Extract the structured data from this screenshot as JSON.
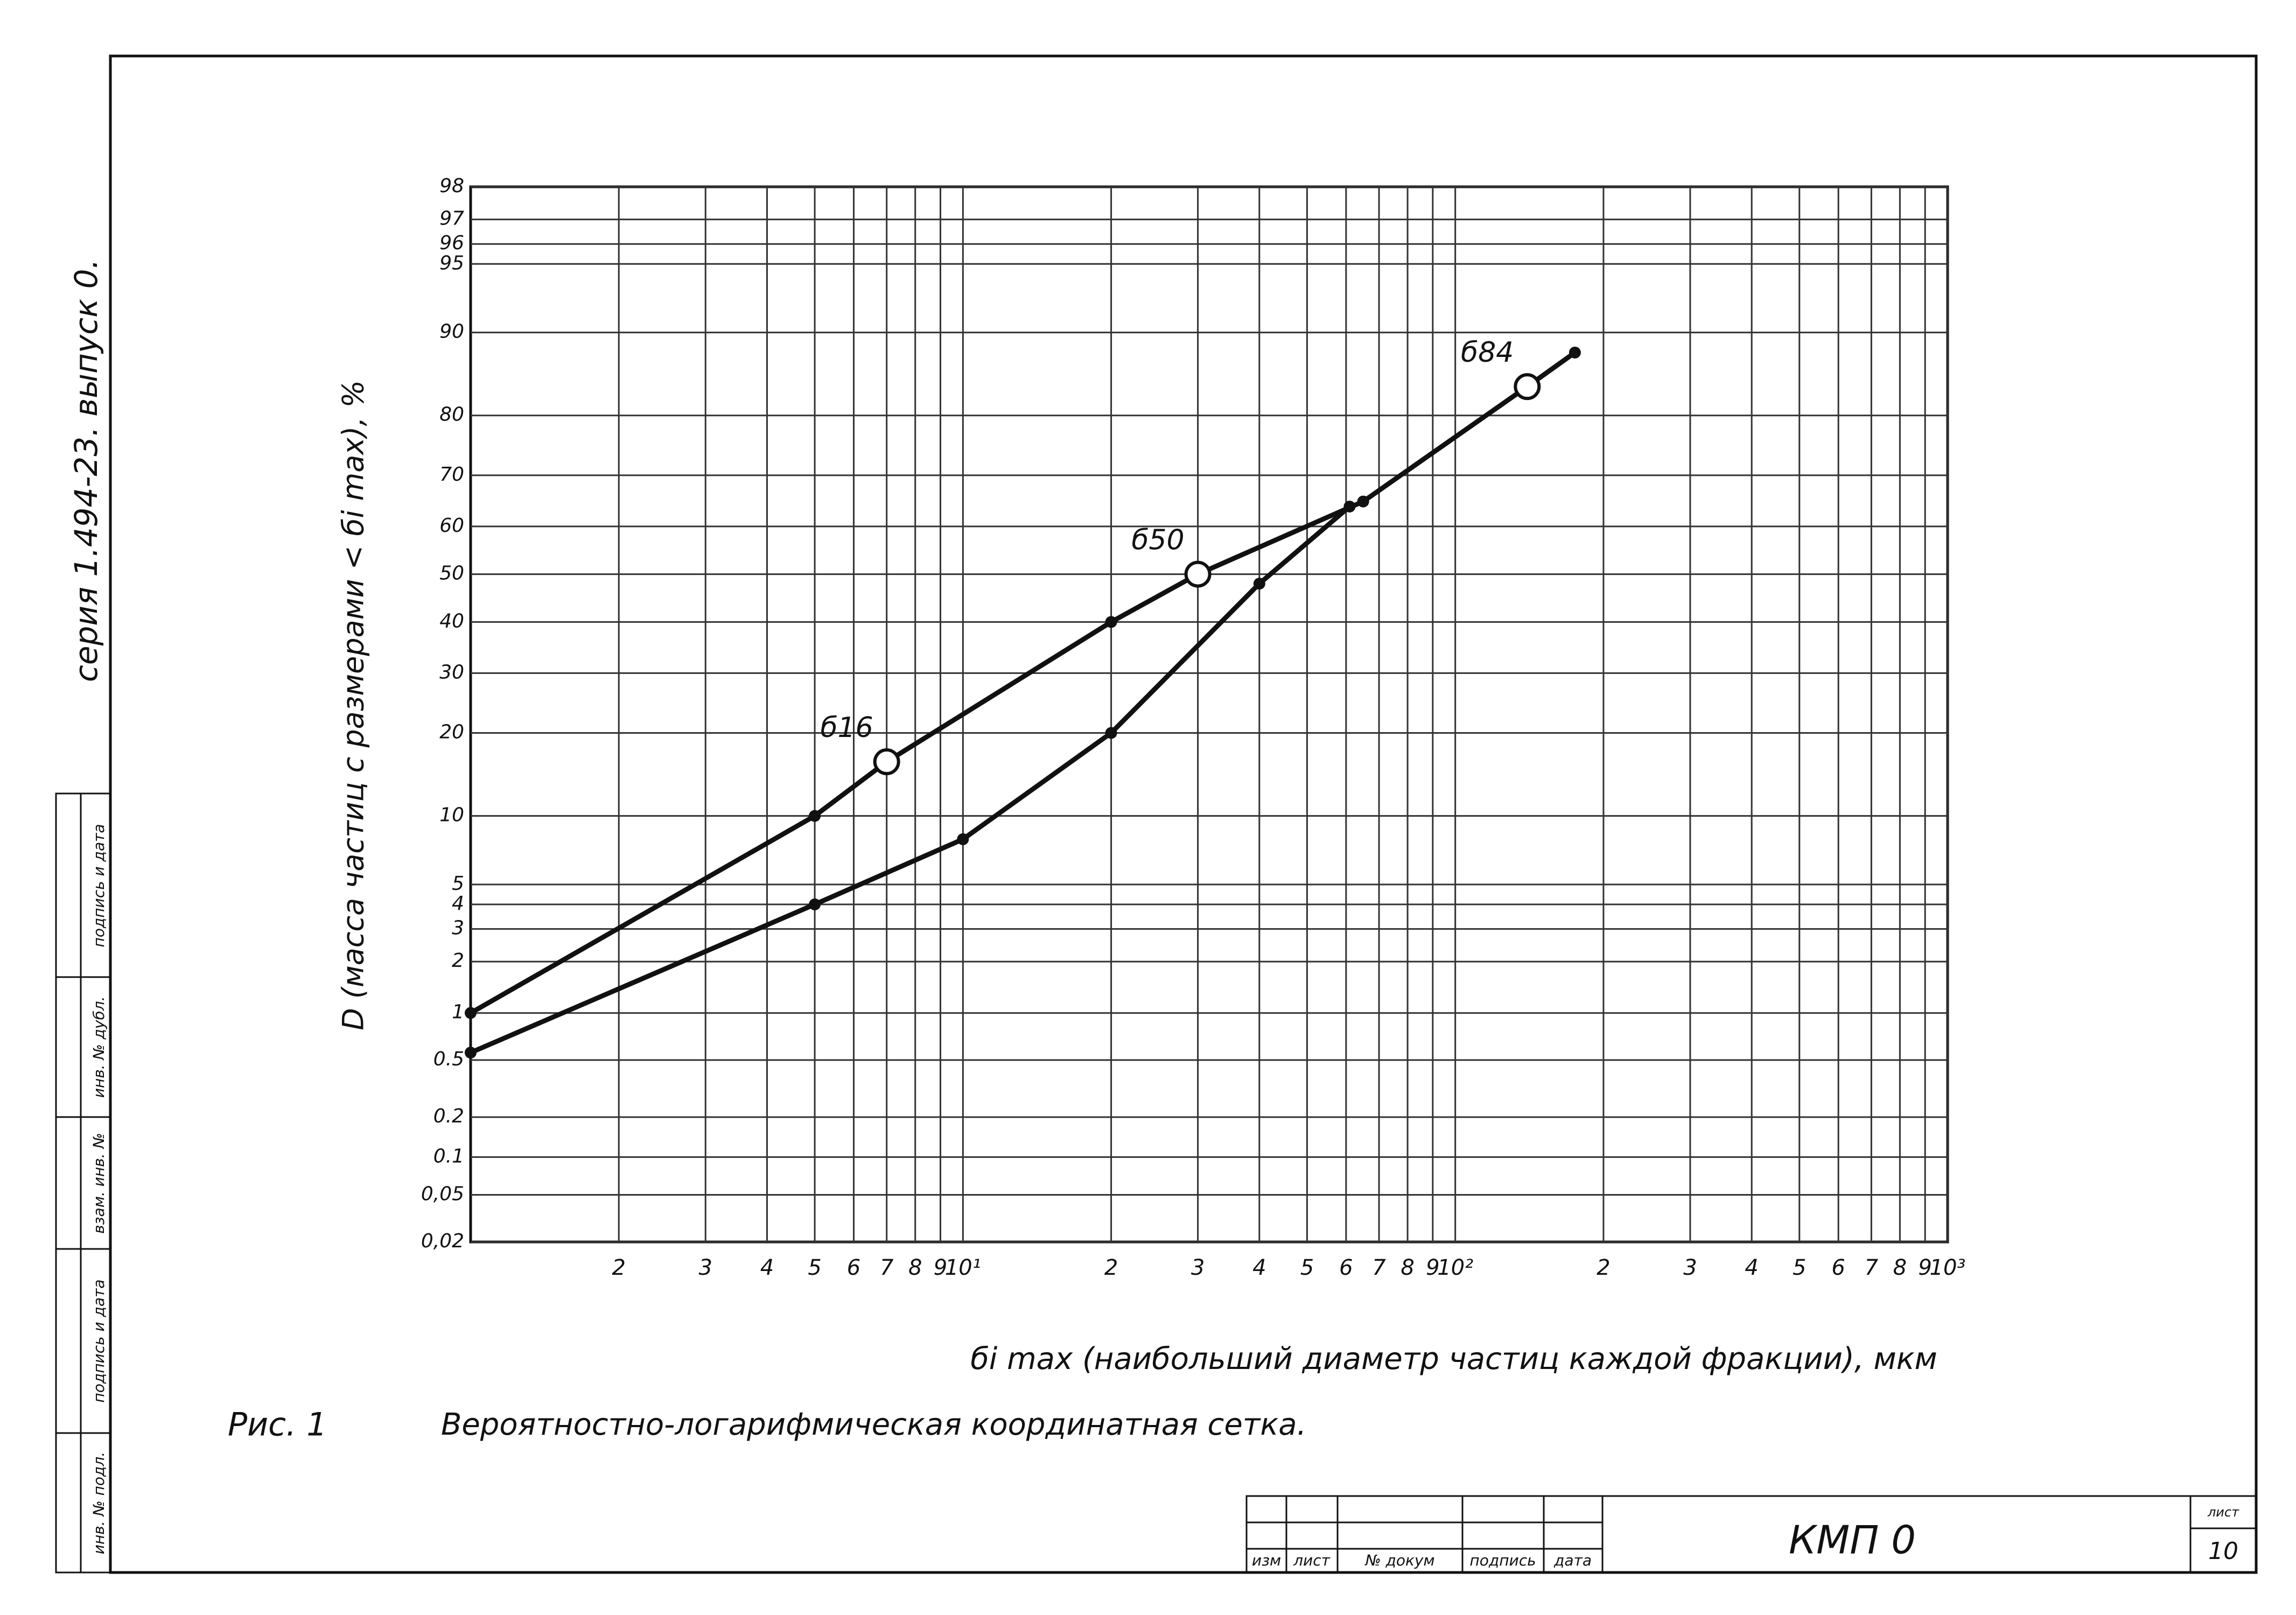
{
  "side_label": "серия 1.494-23. выпуск 0.",
  "stamp_column": [
    "подпись и дата",
    "инв. № дубл.",
    "взам. инв. №",
    "подпись и дата",
    "инв. № подл."
  ],
  "caption": {
    "figure": "Рис. 1",
    "text": "Вероятностно-логарифмическая координатная сетка."
  },
  "title_block": {
    "headers": [
      "изм",
      "лист",
      "№ докум",
      "подпись",
      "дата"
    ],
    "code": "КМП 0",
    "sheet_label": "лист",
    "sheet": "10"
  },
  "chart_data": {
    "type": "line",
    "x_label": "бi max (наибольший диаметр частиц каждой фракции), мкм",
    "y_label": "D (масса частиц с размерами < бi max), %",
    "x_scale": "log",
    "y_scale": "probability",
    "grid": true,
    "xlim": [
      1,
      1000
    ],
    "ylim": [
      0.02,
      98
    ],
    "xticks": [
      2,
      3,
      4,
      5,
      6,
      7,
      8,
      9,
      {
        "value": 10,
        "label": "10¹"
      },
      {
        "value": 20,
        "label": "2"
      },
      {
        "value": 30,
        "label": "3"
      },
      {
        "value": 40,
        "label": "4"
      },
      {
        "value": 50,
        "label": "5"
      },
      {
        "value": 60,
        "label": "6"
      },
      {
        "value": 70,
        "label": "7"
      },
      {
        "value": 80,
        "label": "8"
      },
      {
        "value": 90,
        "label": "9"
      },
      {
        "value": 100,
        "label": "10²"
      },
      {
        "value": 200,
        "label": "2"
      },
      {
        "value": 300,
        "label": "3"
      },
      {
        "value": 400,
        "label": "4"
      },
      {
        "value": 500,
        "label": "5"
      },
      {
        "value": 600,
        "label": "6"
      },
      {
        "value": 700,
        "label": "7"
      },
      {
        "value": 800,
        "label": "8"
      },
      {
        "value": 900,
        "label": "9"
      },
      {
        "value": 1000,
        "label": "10³"
      }
    ],
    "yticks": [
      98,
      97,
      96,
      95,
      90,
      80,
      70,
      60,
      50,
      40,
      30,
      20,
      10,
      5,
      4,
      3,
      2,
      1,
      0.5,
      0.2,
      0.1,
      {
        "value": 0.05,
        "label": "0,05"
      },
      {
        "value": 0.02,
        "label": "0,02"
      }
    ],
    "series": [
      {
        "color": "#111",
        "x": [
          1,
          5,
          7,
          20,
          30,
          65,
          140,
          175
        ],
        "values": [
          1,
          10,
          16,
          40,
          50,
          65,
          84,
          88
        ]
      },
      {
        "color": "#111",
        "x": [
          1,
          5,
          10,
          20,
          40,
          61
        ],
        "values": [
          0.56,
          4,
          8,
          20,
          48,
          64
        ]
      }
    ],
    "annotations": [
      {
        "text": "б16",
        "x": 7,
        "y": 16
      },
      {
        "text": "б50",
        "x": 30,
        "y": 50
      },
      {
        "text": "б84",
        "x": 140,
        "y": 84
      }
    ]
  }
}
